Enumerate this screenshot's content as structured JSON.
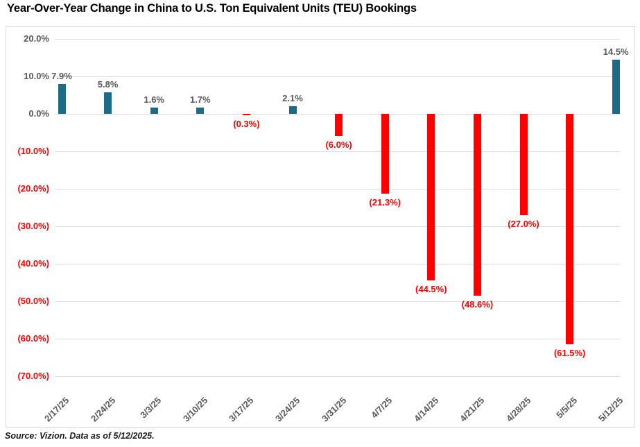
{
  "title": "Year-Over-Year Change in China to U.S. Ton Equivalent Units (TEU) Bookings",
  "source_note": "Source: Vizion. Data as of 5/12/2025.",
  "chart_data": {
    "type": "bar",
    "title": "Year-Over-Year Change in China to U.S. Ton Equivalent Units (TEU) Bookings",
    "categories": [
      "2/17/25",
      "2/24/25",
      "3/3/25",
      "3/10/25",
      "3/17/25",
      "3/24/25",
      "3/31/25",
      "4/7/25",
      "4/14/25",
      "4/21/25",
      "4/28/25",
      "5/5/25",
      "5/12/25"
    ],
    "values": [
      7.9,
      5.8,
      1.6,
      1.7,
      -0.3,
      2.1,
      -6.0,
      -21.3,
      -44.5,
      -48.6,
      -27.0,
      -61.5,
      14.5
    ],
    "value_labels": [
      "7.9%",
      "5.8%",
      "1.6%",
      "1.7%",
      "(0.3%)",
      "2.1%",
      "(6.0%)",
      "(21.3%)",
      "(44.5%)",
      "(48.6%)",
      "(27.0%)",
      "(61.5%)",
      "14.5%"
    ],
    "xlabel": "",
    "ylabel": "",
    "ylim": [
      -70,
      20
    ],
    "ytick_step": 10,
    "ytick_labels": [
      "20.0%",
      "10.0%",
      "0.0%",
      "(10.0%)",
      "(20.0%)",
      "(30.0%)",
      "(40.0%)",
      "(50.0%)",
      "(60.0%)",
      "(70.0%)"
    ],
    "ytick_values": [
      20,
      10,
      0,
      -10,
      -20,
      -30,
      -40,
      -50,
      -60,
      -70
    ],
    "grid": true,
    "legend": false,
    "colors": {
      "positive_bar": "#1c6b87",
      "negative_bar": "#fe0000",
      "positive_label": "#595959",
      "negative_label": "#fe0000",
      "gridline": "#dcdcdc",
      "frame_border": "#d9d9d9",
      "title": "#000000"
    }
  }
}
